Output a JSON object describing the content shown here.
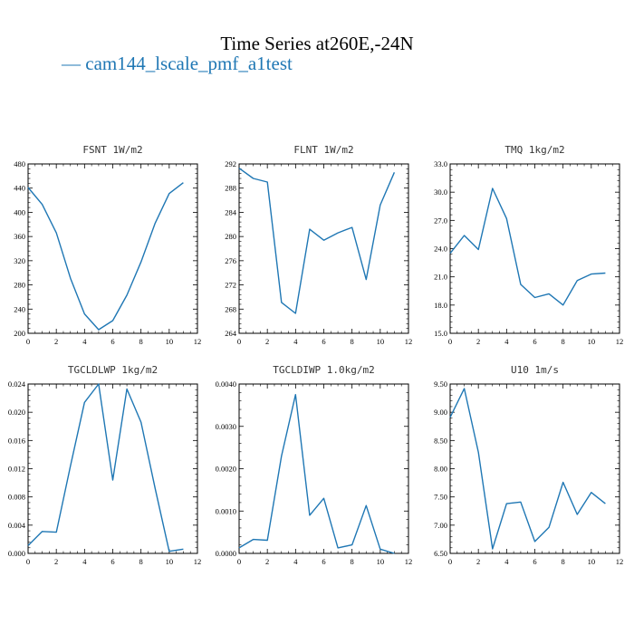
{
  "page": {
    "title": "Time Series at260E,-24N",
    "legend_label": "— cam144_lscale_pmf_a1test",
    "series_color": "#1f77b4"
  },
  "chart_data": [
    {
      "type": "line",
      "title": "FSNT   1W/m2",
      "x": [
        0,
        1,
        2,
        3,
        4,
        5,
        6,
        7,
        8,
        9,
        10,
        11
      ],
      "series": [
        {
          "values": [
            441,
            413,
            366,
            291,
            232,
            206,
            221,
            263,
            318,
            382,
            431,
            449
          ]
        }
      ],
      "xlim": [
        0,
        12
      ],
      "ylim": [
        200,
        480
      ],
      "xticks": [
        0,
        2,
        4,
        6,
        8,
        10,
        12
      ],
      "yticks": [
        200,
        240,
        280,
        320,
        360,
        400,
        440,
        480
      ],
      "ytick_labels": [
        "200",
        "240",
        "280",
        "320",
        "360",
        "400",
        "440",
        "480"
      ]
    },
    {
      "type": "line",
      "title": "FLNT   1W/m2",
      "x": [
        0,
        1,
        2,
        3,
        4,
        5,
        6,
        7,
        8,
        9,
        10,
        11
      ],
      "series": [
        {
          "values": [
            291.3,
            289.6,
            289.0,
            269.1,
            267.3,
            281.2,
            279.4,
            280.6,
            281.5,
            272.9,
            285.2,
            290.6
          ]
        }
      ],
      "xlim": [
        0,
        12
      ],
      "ylim": [
        264,
        292
      ],
      "xticks": [
        0,
        2,
        4,
        6,
        8,
        10,
        12
      ],
      "yticks": [
        264,
        268,
        272,
        276,
        280,
        284,
        288,
        292
      ],
      "ytick_labels": [
        "264",
        "268",
        "272",
        "276",
        "280",
        "284",
        "288",
        "292"
      ]
    },
    {
      "type": "line",
      "title": "TMQ   1kg/m2",
      "x": [
        0,
        1,
        2,
        3,
        4,
        5,
        6,
        7,
        8,
        9,
        10,
        11
      ],
      "series": [
        {
          "values": [
            23.5,
            25.4,
            23.9,
            30.4,
            27.2,
            20.2,
            18.8,
            19.2,
            18.0,
            20.6,
            21.3,
            21.4
          ]
        }
      ],
      "xlim": [
        0,
        12
      ],
      "ylim": [
        15,
        33
      ],
      "xticks": [
        0,
        2,
        4,
        6,
        8,
        10,
        12
      ],
      "yticks": [
        15,
        18,
        21,
        24,
        27,
        30,
        33
      ],
      "ytick_labels": [
        "15.0",
        "18.0",
        "21.0",
        "24.0",
        "27.0",
        "30.0",
        "33.0"
      ]
    },
    {
      "type": "line",
      "title": "TGCLDLWP   1kg/m2",
      "x": [
        0,
        1,
        2,
        3,
        4,
        5,
        6,
        7,
        8,
        9,
        10,
        11
      ],
      "series": [
        {
          "values": [
            0.0011,
            0.0031,
            0.003,
            0.0124,
            0.0214,
            0.024,
            0.0104,
            0.0233,
            0.0186,
            0.0092,
            0.0003,
            0.0006
          ]
        }
      ],
      "xlim": [
        0,
        12
      ],
      "ylim": [
        0,
        0.024
      ],
      "xticks": [
        0,
        2,
        4,
        6,
        8,
        10,
        12
      ],
      "yticks": [
        0,
        0.004,
        0.008,
        0.012,
        0.016,
        0.02,
        0.024
      ],
      "ytick_labels": [
        "0.000",
        "0.004",
        "0.008",
        "0.012",
        "0.016",
        "0.020",
        "0.024"
      ]
    },
    {
      "type": "line",
      "title": "TGCLDIWP   1.0kg/m2",
      "x": [
        0,
        1,
        2,
        3,
        4,
        5,
        6,
        7,
        8,
        9,
        10,
        11
      ],
      "series": [
        {
          "values": [
            0.00013,
            0.00033,
            0.00031,
            0.0023,
            0.00375,
            0.0009,
            0.0013,
            0.00013,
            0.0002,
            0.00113,
            0.0001,
            0.0
          ]
        }
      ],
      "xlim": [
        0,
        12
      ],
      "ylim": [
        0,
        0.004
      ],
      "xticks": [
        0,
        2,
        4,
        6,
        8,
        10,
        12
      ],
      "yticks": [
        0,
        0.001,
        0.002,
        0.003,
        0.004
      ],
      "ytick_labels": [
        "0.0000",
        "0.0010",
        "0.0020",
        "0.0030",
        "0.0040"
      ]
    },
    {
      "type": "line",
      "title": "U10   1m/s",
      "x": [
        0,
        1,
        2,
        3,
        4,
        5,
        6,
        7,
        8,
        9,
        10,
        11
      ],
      "series": [
        {
          "values": [
            8.91,
            9.42,
            8.29,
            6.58,
            7.38,
            7.41,
            6.71,
            6.96,
            7.76,
            7.19,
            7.58,
            7.38
          ]
        }
      ],
      "xlim": [
        0,
        12
      ],
      "ylim": [
        6.5,
        9.5
      ],
      "xticks": [
        0,
        2,
        4,
        6,
        8,
        10,
        12
      ],
      "yticks": [
        6.5,
        7,
        7.5,
        8,
        8.5,
        9,
        9.5
      ],
      "ytick_labels": [
        "6.50",
        "7.00",
        "7.50",
        "8.00",
        "8.50",
        "9.00",
        "9.50"
      ]
    }
  ]
}
